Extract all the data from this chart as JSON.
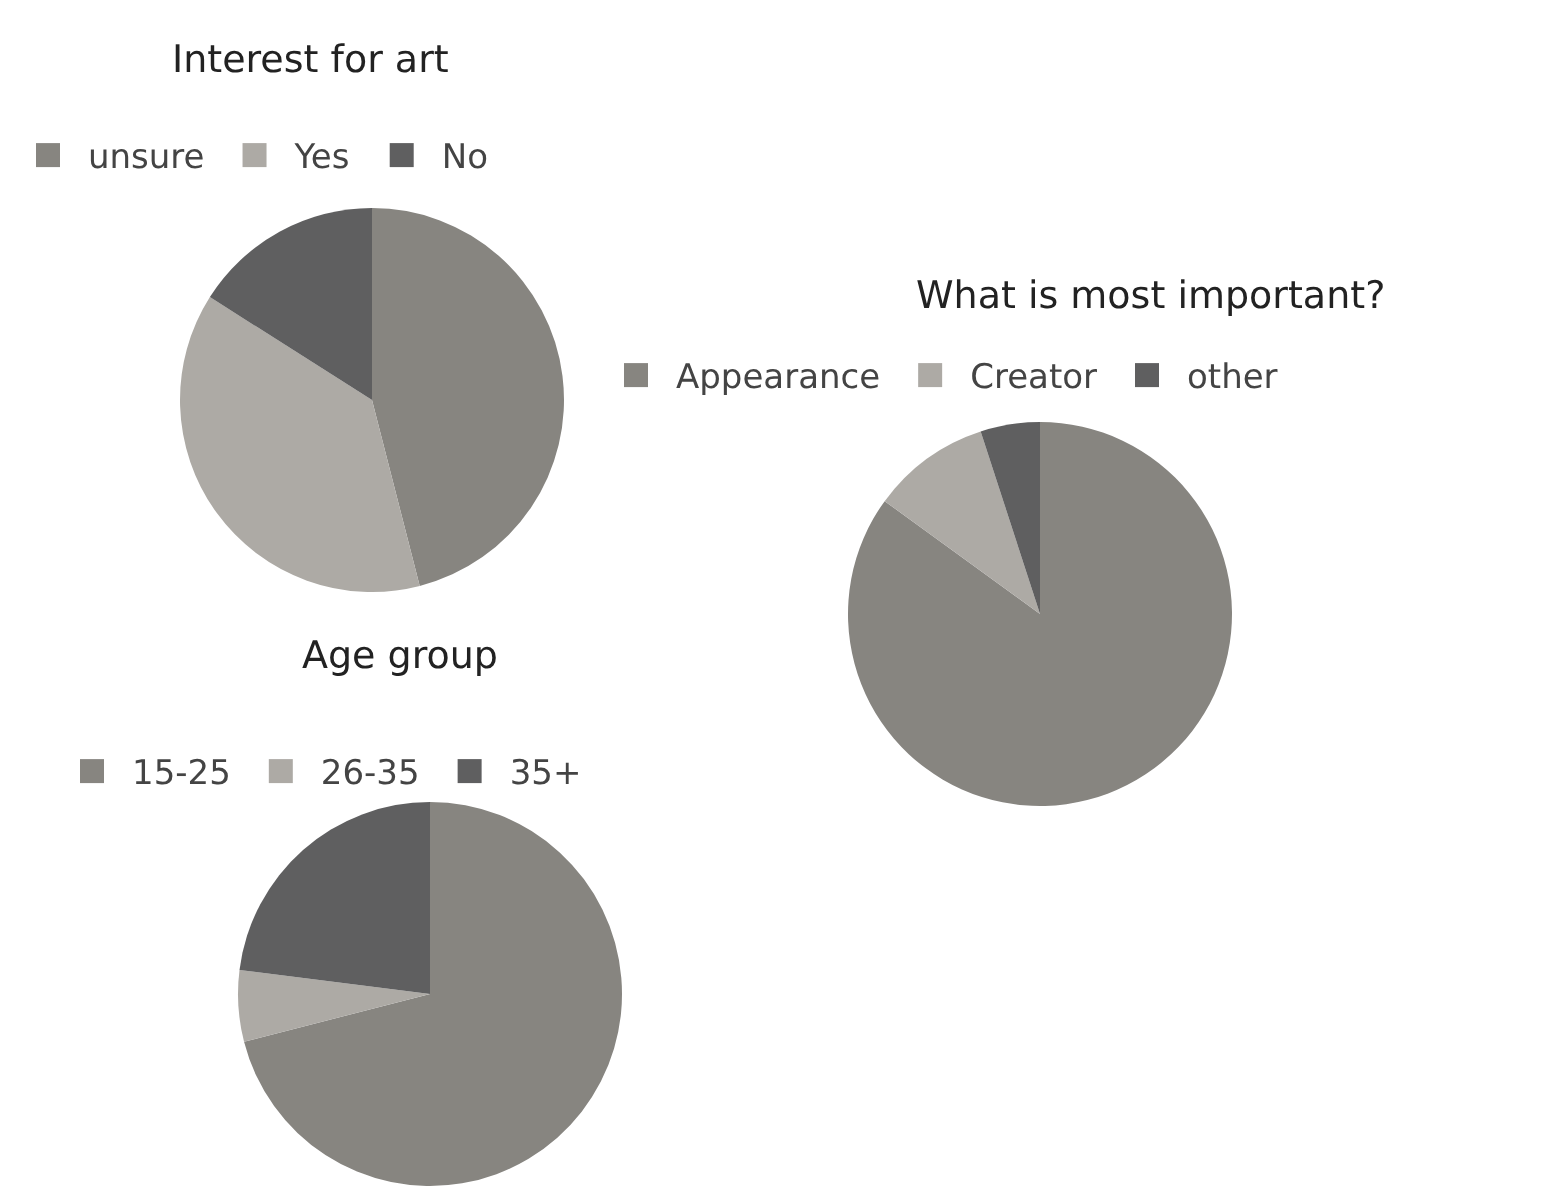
{
  "chart_data": [
    {
      "type": "pie",
      "title": "Interest for art",
      "categories": [
        "unsure",
        "Yes",
        "No"
      ],
      "values": [
        46,
        38,
        16
      ],
      "colors": [
        "#878580",
        "#adaaa5",
        "#5f5f60"
      ],
      "legend": "top"
    },
    {
      "type": "pie",
      "title": "What is most important?",
      "categories": [
        "Appearance",
        "Creator",
        "other"
      ],
      "values": [
        85,
        10,
        5
      ],
      "colors": [
        "#878580",
        "#adaaa5",
        "#5f5f60"
      ],
      "legend": "top"
    },
    {
      "type": "pie",
      "title": "Age group",
      "categories": [
        "15-25",
        "26-35",
        "35+"
      ],
      "values": [
        71,
        6,
        23
      ],
      "colors": [
        "#878580",
        "#adaaa5",
        "#5f5f60"
      ],
      "legend": "top"
    }
  ]
}
